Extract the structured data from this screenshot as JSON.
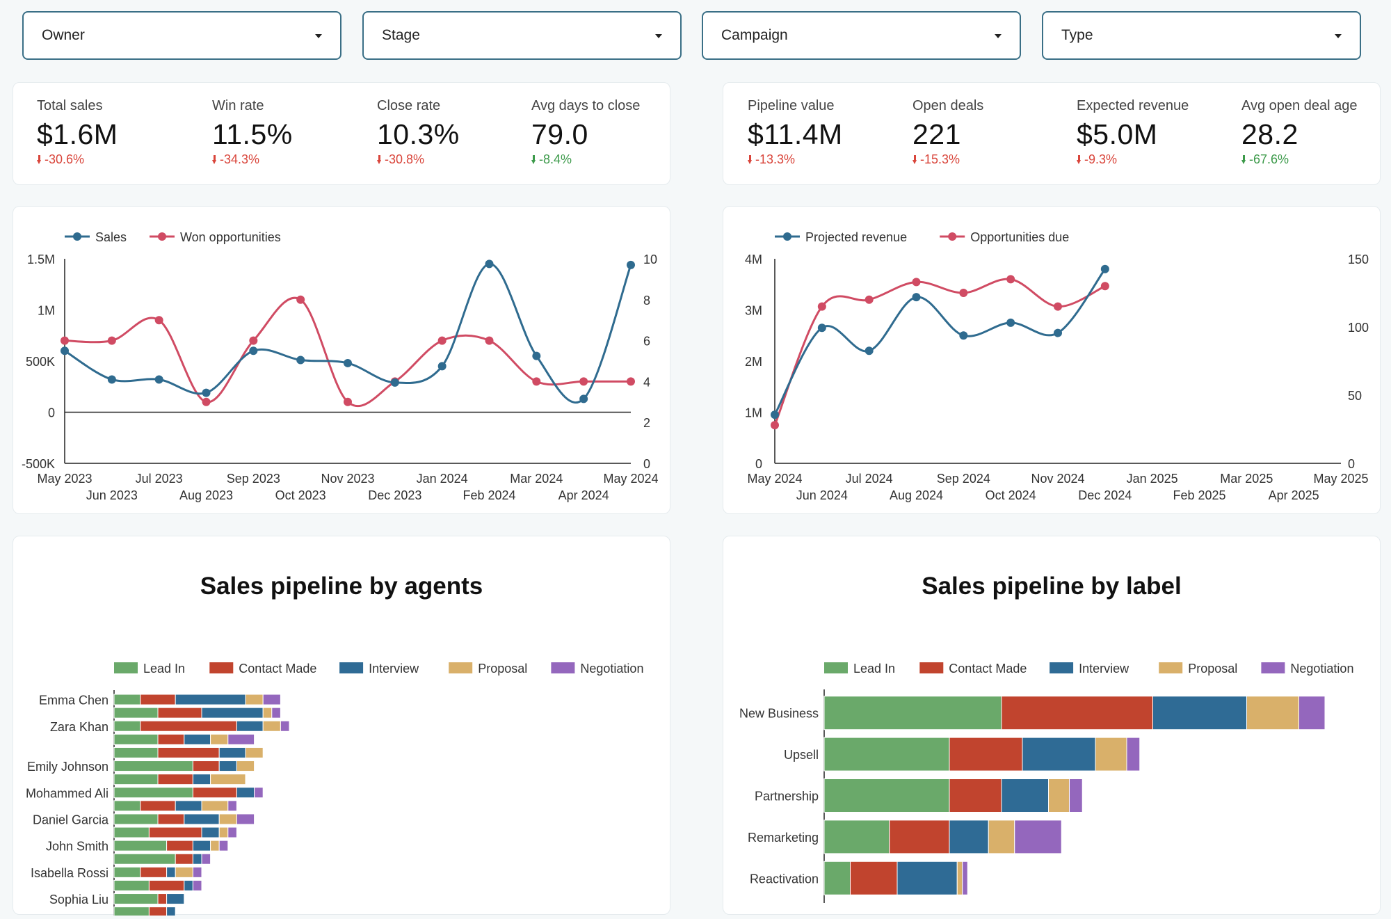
{
  "filters": [
    {
      "label": "Owner"
    },
    {
      "label": "Stage"
    },
    {
      "label": "Campaign"
    },
    {
      "label": "Type"
    }
  ],
  "kpis_left": [
    {
      "label": "Total sales",
      "value": "$1.6M",
      "delta": "-30.6%",
      "trend": "down"
    },
    {
      "label": "Win rate",
      "value": "11.5%",
      "delta": "-34.3%",
      "trend": "down"
    },
    {
      "label": "Close rate",
      "value": "10.3%",
      "delta": "-30.8%",
      "trend": "down"
    },
    {
      "label": "Avg days to close",
      "value": "79.0",
      "delta": "-8.4%",
      "trend": "down_good"
    }
  ],
  "kpis_right": [
    {
      "label": "Pipeline value",
      "value": "$11.4M",
      "delta": "-13.3%",
      "trend": "down"
    },
    {
      "label": "Open deals",
      "value": "221",
      "delta": "-15.3%",
      "trend": "down"
    },
    {
      "label": "Expected revenue",
      "value": "$5.0M",
      "delta": "-9.3%",
      "trend": "down"
    },
    {
      "label": "Avg open deal age",
      "value": "28.2",
      "delta": "-67.6%",
      "trend": "down_good"
    }
  ],
  "colors": {
    "blue": "#2f6b8f",
    "red": "#d04b63",
    "neg": "#d9453b",
    "pos": "#3c9a4a",
    "stages": [
      "#6aa96a",
      "#c1442e",
      "#2f6b95",
      "#d9b06a",
      "#9467bd"
    ]
  },
  "chart_data": [
    {
      "type": "line",
      "title": "",
      "x": [
        "May 2023",
        "Jun 2023",
        "Jul 2023",
        "Aug 2023",
        "Sep 2023",
        "Oct 2023",
        "Nov 2023",
        "Dec 2023",
        "Jan 2024",
        "Feb 2024",
        "Mar 2024",
        "Apr 2024",
        "May 2024"
      ],
      "series": [
        {
          "name": "Sales",
          "axis": "left",
          "values": [
            600000,
            320000,
            320000,
            190000,
            600000,
            510000,
            480000,
            290000,
            450000,
            1450000,
            550000,
            130000,
            1440000
          ]
        },
        {
          "name": "Won opportunities",
          "axis": "right",
          "values": [
            6,
            6,
            7,
            3,
            6,
            8,
            3,
            4,
            6,
            6,
            4,
            4,
            4
          ]
        }
      ],
      "y_left": {
        "min": -500000,
        "max": 1500000,
        "ticks": [
          -500000,
          0,
          500000,
          1000000,
          1500000
        ],
        "tick_labels": [
          "-500K",
          "0",
          "500K",
          "1M",
          "1.5M"
        ]
      },
      "y_right": {
        "min": 0,
        "max": 10,
        "ticks": [
          0,
          2,
          4,
          6,
          8,
          10
        ],
        "tick_labels": [
          "0",
          "2",
          "4",
          "6",
          "8",
          "10"
        ]
      },
      "legend": "top-left"
    },
    {
      "type": "line",
      "title": "",
      "x": [
        "May 2024",
        "Jun 2024",
        "Jul 2024",
        "Aug 2024",
        "Sep 2024",
        "Oct 2024",
        "Nov 2024",
        "Dec 2024",
        "Jan 2025",
        "Feb 2025",
        "Mar 2025",
        "Apr 2025",
        "May 2025"
      ],
      "series": [
        {
          "name": "Projected revenue",
          "axis": "left",
          "values": [
            950000,
            2650000,
            2200000,
            3250000,
            2500000,
            2750000,
            2550000,
            3800000,
            null,
            null,
            null,
            null,
            null
          ]
        },
        {
          "name": "Opportunities due",
          "axis": "right",
          "values": [
            28,
            115,
            120,
            133,
            125,
            135,
            115,
            130,
            null,
            null,
            null,
            null,
            null
          ]
        }
      ],
      "y_left": {
        "min": 0,
        "max": 4000000,
        "ticks": [
          0,
          1000000,
          2000000,
          3000000,
          4000000
        ],
        "tick_labels": [
          "0",
          "1M",
          "2M",
          "3M",
          "4M"
        ]
      },
      "y_right": {
        "min": 0,
        "max": 150,
        "ticks": [
          0,
          50,
          100,
          150
        ],
        "tick_labels": [
          "0",
          "50",
          "100",
          "150"
        ]
      },
      "legend": "top-left"
    },
    {
      "type": "bar",
      "orientation": "horizontal",
      "stacked": true,
      "title": "Sales pipeline by agents",
      "categories": [
        "Emma Chen",
        "",
        "Zara Khan",
        "",
        "",
        "Emily Johnson",
        "",
        "Mohammed Ali",
        "",
        "Daniel Garcia",
        "",
        "John Smith",
        "",
        "Isabella Rossi",
        "",
        "Sophia Liu",
        ""
      ],
      "series": [
        {
          "name": "Lead In",
          "values": [
            3,
            5,
            3,
            5,
            5,
            9,
            5,
            9,
            3,
            5,
            4,
            6,
            7,
            3,
            4,
            5,
            4
          ]
        },
        {
          "name": "Contact Made",
          "values": [
            4,
            5,
            11,
            3,
            7,
            3,
            4,
            5,
            4,
            3,
            6,
            3,
            2,
            3,
            4,
            1,
            2
          ]
        },
        {
          "name": "Interview",
          "values": [
            8,
            7,
            3,
            3,
            3,
            2,
            2,
            2,
            3,
            4,
            2,
            2,
            1,
            1,
            1,
            2,
            1
          ]
        },
        {
          "name": "Proposal",
          "values": [
            2,
            1,
            2,
            2,
            2,
            2,
            4,
            0,
            3,
            2,
            1,
            1,
            0,
            2,
            0,
            0,
            0
          ]
        },
        {
          "name": "Negotiation",
          "values": [
            2,
            1,
            1,
            3,
            0,
            0,
            0,
            1,
            1,
            2,
            1,
            1,
            1,
            1,
            1,
            0,
            0
          ]
        }
      ],
      "x_label": "",
      "legend": "top"
    },
    {
      "type": "bar",
      "orientation": "horizontal",
      "stacked": true,
      "title": "Sales pipeline by label",
      "categories": [
        "New Business",
        "Upsell",
        "Partnership",
        "Remarketing",
        "Reactivation"
      ],
      "series": [
        {
          "name": "Lead In",
          "values": [
            34,
            24,
            24,
            12.5,
            5
          ]
        },
        {
          "name": "Contact Made",
          "values": [
            29,
            14,
            10,
            11.5,
            9
          ]
        },
        {
          "name": "Interview",
          "values": [
            18,
            14,
            9,
            7.5,
            11.5
          ]
        },
        {
          "name": "Proposal",
          "values": [
            10,
            6,
            4,
            5,
            1
          ]
        },
        {
          "name": "Negotiation",
          "values": [
            5,
            2.5,
            2.5,
            9,
            1
          ]
        }
      ],
      "legend": "top"
    }
  ]
}
